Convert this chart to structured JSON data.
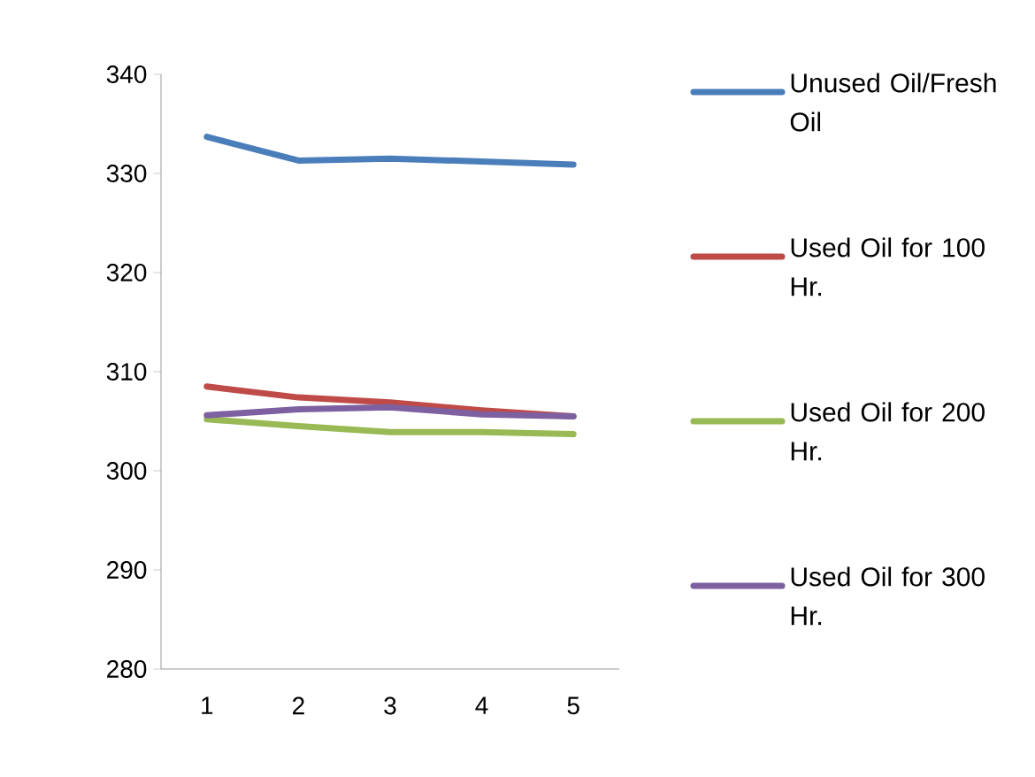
{
  "chart_data": {
    "type": "line",
    "categories": [
      "1",
      "2",
      "3",
      "4",
      "5"
    ],
    "ylim": [
      280,
      340
    ],
    "yticks": [
      280,
      290,
      300,
      310,
      320,
      330,
      340
    ],
    "grid": false,
    "legend": "right",
    "marker": "none",
    "line_style": "solid",
    "series": [
      {
        "name": "Unused Oil/Fresh Oil",
        "color": "#4a7ebb",
        "values": [
          333.7,
          331.3,
          331.5,
          331.2,
          330.9
        ]
      },
      {
        "name": "Used Oil for 100 Hr.",
        "color": "#be4b48",
        "values": [
          308.5,
          307.4,
          306.9,
          306.1,
          305.5
        ]
      },
      {
        "name": "Used Oil for 200 Hr.",
        "color": "#98b954",
        "values": [
          305.2,
          304.5,
          303.9,
          303.9,
          303.7
        ]
      },
      {
        "name": "Used Oil for 300 Hr.",
        "color": "#7d60a0",
        "values": [
          305.6,
          306.2,
          306.4,
          305.7,
          305.5
        ]
      }
    ]
  }
}
